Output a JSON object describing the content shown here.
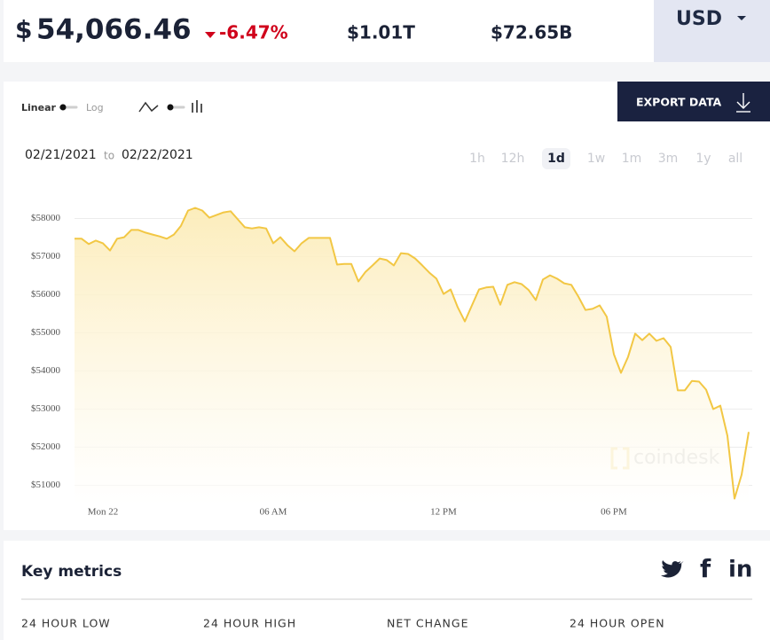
{
  "header": {
    "currency_symbol": "$",
    "price": "54,066.46",
    "change": "-6.47%",
    "market_cap": "$1.01T",
    "volume": "$72.65B",
    "currency": "USD"
  },
  "controls": {
    "scale_options": [
      "Linear",
      "Log"
    ],
    "export": "EXPORT DATA",
    "date_from": "02/21/2021",
    "date_to_word": "to",
    "date_to": "02/22/2021",
    "ranges": [
      "1h",
      "12h",
      "1d",
      "1w",
      "1m",
      "3m",
      "1y",
      "all"
    ],
    "selected_range": "1d"
  },
  "chart_data": {
    "type": "line",
    "color": "#f2c744",
    "watermark": "coindesk",
    "grid": true,
    "xlim": [
      -1,
      23
    ],
    "xticks": [
      {
        "value": 0,
        "label": "Mon 22"
      },
      {
        "value": 6,
        "label": "06 AM"
      },
      {
        "value": 12,
        "label": "12 PM"
      },
      {
        "value": 18,
        "label": "06 PM"
      }
    ],
    "ylim": [
      50500,
      58500
    ],
    "yticks": [
      {
        "value": 51000,
        "label": "$51000"
      },
      {
        "value": 52000,
        "label": "$52000"
      },
      {
        "value": 53000,
        "label": "$53000"
      },
      {
        "value": 54000,
        "label": "$54000"
      },
      {
        "value": 55000,
        "label": "$55000"
      },
      {
        "value": 56000,
        "label": "$56000"
      },
      {
        "value": 57000,
        "label": "$57000"
      },
      {
        "value": 58000,
        "label": "$58000"
      }
    ],
    "x": [
      -1,
      -0.75,
      -0.5,
      -0.25,
      0,
      0.25,
      0.5,
      0.75,
      1,
      1.25,
      1.5,
      1.75,
      2,
      2.25,
      2.5,
      2.75,
      3,
      3.25,
      3.5,
      3.75,
      4,
      4.25,
      4.5,
      4.75,
      5,
      5.25,
      5.5,
      5.75,
      6,
      6.25,
      6.5,
      6.75,
      7,
      7.25,
      7.5,
      7.75,
      8,
      8.25,
      8.5,
      8.75,
      9,
      9.25,
      9.5,
      9.75,
      10,
      10.25,
      10.5,
      10.75,
      11,
      11.25,
      11.5,
      11.75,
      12,
      12.25,
      12.5,
      12.75,
      13,
      13.25,
      13.5,
      13.75,
      14,
      14.25,
      14.5,
      14.75,
      15,
      15.25,
      15.5,
      15.75,
      16,
      16.25,
      16.5,
      16.75,
      17,
      17.25,
      17.5,
      17.75,
      18,
      18.25,
      18.5,
      18.75,
      19,
      19.25,
      19.5,
      19.75,
      20,
      20.25,
      20.5,
      20.75,
      21,
      21.25,
      21.5,
      21.75,
      22,
      22.25,
      22.5,
      22.75
    ],
    "values": [
      57470,
      57470,
      57330,
      57420,
      57350,
      57160,
      57470,
      57510,
      57700,
      57700,
      57630,
      57580,
      57530,
      57470,
      57580,
      57810,
      58210,
      58280,
      58210,
      58020,
      58090,
      58160,
      58190,
      57980,
      57770,
      57740,
      57770,
      57740,
      57350,
      57510,
      57300,
      57140,
      57350,
      57490,
      57490,
      57490,
      57490,
      56790,
      56810,
      56810,
      56350,
      56600,
      56770,
      56950,
      56910,
      56770,
      57090,
      57070,
      56950,
      56770,
      56580,
      56420,
      56020,
      56140,
      55670,
      55300,
      55720,
      56140,
      56190,
      56210,
      55740,
      56260,
      56330,
      56280,
      56120,
      55860,
      56400,
      56510,
      56420,
      56300,
      56260,
      55950,
      55600,
      55630,
      55720,
      55420,
      54440,
      53950,
      54370,
      54980,
      54810,
      54980,
      54790,
      54860,
      54630,
      53490,
      53490,
      53740,
      53720,
      53510,
      53000,
      53090,
      52300,
      50650,
      51280,
      52400
    ]
  },
  "key_metrics": {
    "title": "Key metrics",
    "social": [
      "f",
      "in"
    ],
    "labels": [
      "24 HOUR LOW",
      "24 HOUR HIGH",
      "NET CHANGE",
      "24 HOUR OPEN"
    ]
  }
}
